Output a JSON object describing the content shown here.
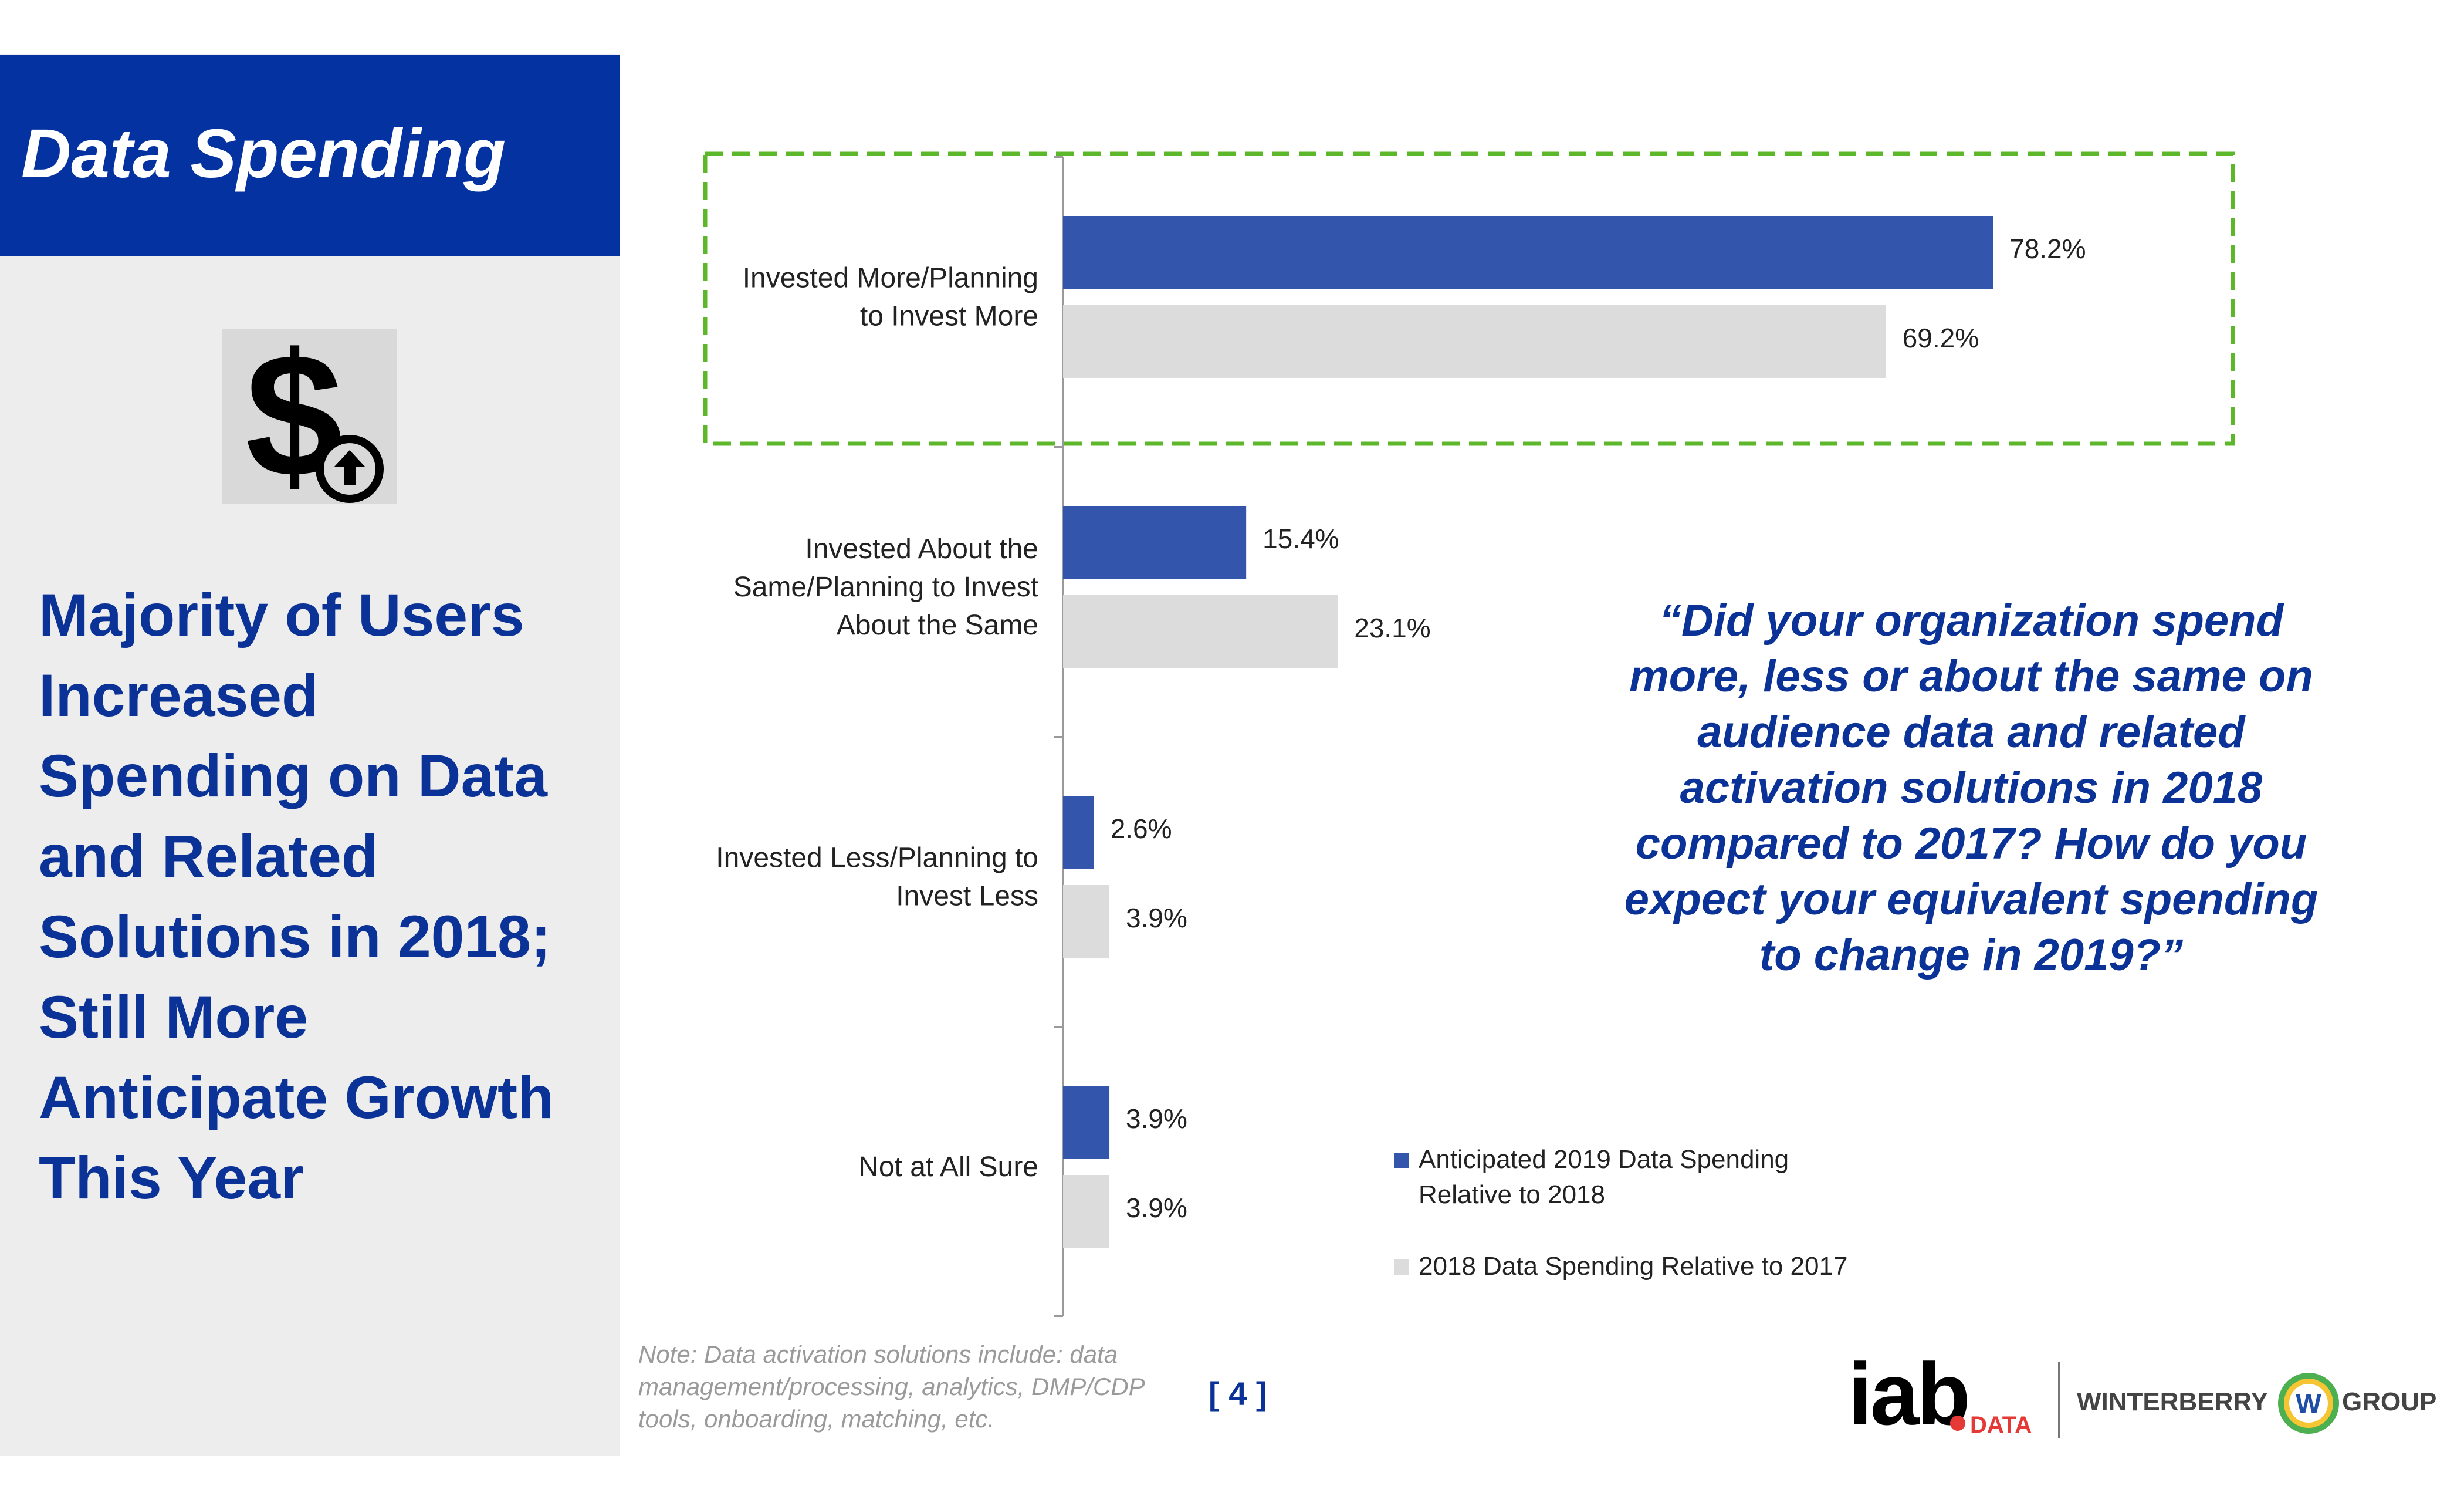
{
  "sidebar": {
    "title": "Data Spending",
    "icon": "dollar-up-arrow-icon",
    "headline_lines": [
      "Majority of Users",
      "Increased",
      "Spending on Data",
      "and Related",
      "Solutions in 2018;",
      "Still More",
      "Anticipate Growth",
      "This Year"
    ]
  },
  "question_lines": [
    "“Did your organization spend",
    "more, less or about the same on",
    "audience data and related",
    "activation solutions in 2018",
    "compared to 2017? How do you",
    "expect your equivalent spending",
    "to change in 2019?”"
  ],
  "note_lines": [
    "Note: Data activation solutions include: data",
    "management/processing, analytics, DMP/CDP",
    "tools, onboarding, matching, etc."
  ],
  "page_number": "[ 4 ]",
  "logos": {
    "iab": "iab",
    "iab_suffix": "DATA",
    "winterberry_left": "WINTERBERRY",
    "winterberry_mark": "W",
    "winterberry_right": "GROUP"
  },
  "colors": {
    "series_2019": "#3355ab",
    "series_2018": "#dcdcdc",
    "highlight_border": "#5cb82a",
    "brand_blue": "#0432a0"
  },
  "chart_data": {
    "type": "bar",
    "orientation": "horizontal",
    "title": "",
    "xlabel": "",
    "ylabel": "",
    "xlim": [
      0,
      100
    ],
    "categories": [
      [
        "Invested More/Planning",
        "to Invest More"
      ],
      [
        "Invested About the",
        "Same/Planning to Invest",
        "About the Same"
      ],
      [
        "Invested Less/Planning to",
        "Invest Less"
      ],
      [
        "Not at All Sure"
      ]
    ],
    "series": [
      {
        "name": "Anticipated 2019 Data Spending Relative to 2018",
        "legend_lines": [
          "Anticipated 2019 Data Spending",
          "Relative to 2018"
        ],
        "values": [
          78.2,
          15.4,
          2.6,
          3.9
        ]
      },
      {
        "name": "2018 Data Spending Relative to 2017",
        "legend_lines": [
          "2018 Data Spending Relative to 2017"
        ],
        "values": [
          69.2,
          23.1,
          3.9,
          3.9
        ]
      }
    ],
    "value_suffix": "%",
    "highlighted_category": "Invested More/Planning to Invest More",
    "legend_position": "bottom-right"
  }
}
